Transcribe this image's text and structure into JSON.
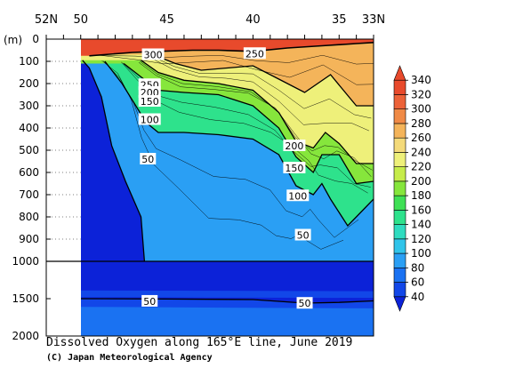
{
  "caption": {
    "title": "Dissolved Oxygen along 165°E line, June 2019",
    "copyright": "(C) Japan Meteorological Agency"
  },
  "chart_data": {
    "type": "heatmap",
    "title": "Dissolved Oxygen along 165°E line, June 2019",
    "xlim": [
      52,
      33
    ],
    "x_tick_labels": [
      {
        "lat": 52,
        "label": "52N"
      },
      {
        "lat": 50,
        "label": "50"
      },
      {
        "lat": 45,
        "label": "45"
      },
      {
        "lat": 40,
        "label": "40"
      },
      {
        "lat": 35,
        "label": "35"
      },
      {
        "lat": 33,
        "label": "33N"
      }
    ],
    "ylabel": "(m)",
    "y_axis": {
      "upper_range": [
        0,
        1000
      ],
      "lower_range": [
        1000,
        2000
      ],
      "upper_ticks": [
        0,
        100,
        200,
        300,
        400,
        500,
        600,
        700,
        800,
        900,
        1000
      ],
      "lower_ticks": [
        1500,
        2000
      ]
    },
    "data_start_lat": 50,
    "colorbar": {
      "levels": [
        40,
        60,
        80,
        100,
        120,
        140,
        160,
        180,
        200,
        220,
        240,
        260,
        280,
        300,
        320,
        340
      ],
      "colors": [
        "#0c22d8",
        "#1247e8",
        "#1a72f2",
        "#2a9ff4",
        "#30c4ea",
        "#2fdcc0",
        "#2ee28c",
        "#3fe055",
        "#86e63c",
        "#c6ec4a",
        "#eef07a",
        "#f4da7a",
        "#f4b45a",
        "#f08a46",
        "#ec6238",
        "#e84a2c"
      ]
    },
    "series": [
      {
        "level": 50,
        "values": [
          [
            49.9,
            95
          ],
          [
            49.5,
            130
          ],
          [
            48.8,
            260
          ],
          [
            48.2,
            480
          ],
          [
            47.4,
            640
          ],
          [
            46.5,
            800
          ],
          [
            46.3,
            1000
          ]
        ]
      },
      {
        "level": 100,
        "values": [
          [
            48.6,
            100
          ],
          [
            47.6,
            200
          ],
          [
            46.8,
            300
          ],
          [
            46.2,
            375
          ],
          [
            45.5,
            420
          ],
          [
            44.0,
            420
          ],
          [
            42.0,
            430
          ],
          [
            40.0,
            450
          ],
          [
            38.5,
            520
          ],
          [
            37.5,
            660
          ],
          [
            36.5,
            700
          ],
          [
            36.0,
            650
          ],
          [
            35.5,
            720
          ],
          [
            34.5,
            840
          ],
          [
            33.5,
            760
          ],
          [
            33.0,
            720
          ]
        ]
      },
      {
        "level": 150,
        "values": [
          [
            47.5,
            110
          ],
          [
            46.5,
            170
          ],
          [
            45.5,
            230
          ],
          [
            44.0,
            240
          ],
          [
            42.0,
            250
          ],
          [
            40.0,
            300
          ],
          [
            38.5,
            400
          ],
          [
            37.5,
            530
          ],
          [
            36.5,
            600
          ],
          [
            36.0,
            520
          ],
          [
            35.0,
            520
          ],
          [
            34.0,
            650
          ],
          [
            33.0,
            640
          ]
        ]
      },
      {
        "level": 200,
        "values": [
          [
            46.5,
            95
          ],
          [
            45.5,
            150
          ],
          [
            44.0,
            185
          ],
          [
            42.0,
            200
          ],
          [
            40.0,
            230
          ],
          [
            38.5,
            330
          ],
          [
            37.5,
            460
          ],
          [
            36.5,
            490
          ],
          [
            35.8,
            420
          ],
          [
            35.0,
            470
          ],
          [
            34.0,
            560
          ],
          [
            33.0,
            560
          ]
        ]
      },
      {
        "level": 250,
        "values": [
          [
            45.8,
            70
          ],
          [
            44.5,
            110
          ],
          [
            43.0,
            140
          ],
          [
            41.5,
            130
          ],
          [
            40.0,
            120
          ],
          [
            38.5,
            180
          ],
          [
            37.0,
            240
          ],
          [
            35.5,
            160
          ],
          [
            34.0,
            300
          ],
          [
            33.0,
            300
          ]
        ]
      },
      {
        "level": 300,
        "values": [
          [
            49.5,
            75
          ],
          [
            47.0,
            60
          ],
          [
            45.5,
            55
          ],
          [
            43.5,
            50
          ],
          [
            42.0,
            50
          ],
          [
            40.0,
            55
          ],
          [
            38.0,
            40
          ],
          [
            36.0,
            30
          ],
          [
            34.0,
            20
          ],
          [
            33.0,
            15
          ]
        ]
      }
    ],
    "deep_contours": [
      {
        "level": 50,
        "values": [
          [
            50,
            1500
          ],
          [
            45,
            1505
          ],
          [
            40,
            1512
          ],
          [
            37,
            1560
          ],
          [
            35,
            1550
          ],
          [
            33,
            1530
          ]
        ]
      }
    ],
    "contour_labels": [
      {
        "text": "300",
        "lat": 45.8,
        "depth": 70
      },
      {
        "text": "250",
        "lat": 39.9,
        "depth": 65
      },
      {
        "text": "250",
        "lat": 46.0,
        "depth": 205
      },
      {
        "text": "200",
        "lat": 46.0,
        "depth": 240
      },
      {
        "text": "150",
        "lat": 46.0,
        "depth": 280
      },
      {
        "text": "100",
        "lat": 46.0,
        "depth": 362
      },
      {
        "text": "50",
        "lat": 46.1,
        "depth": 540
      },
      {
        "text": "200",
        "lat": 37.6,
        "depth": 480
      },
      {
        "text": "150",
        "lat": 37.6,
        "depth": 580
      },
      {
        "text": "100",
        "lat": 37.4,
        "depth": 705
      },
      {
        "text": "50",
        "lat": 37.1,
        "depth": 882
      },
      {
        "text": "50",
        "lat": 46.0,
        "depth": 1535
      },
      {
        "text": "50",
        "lat": 37.0,
        "depth": 1562
      }
    ]
  }
}
